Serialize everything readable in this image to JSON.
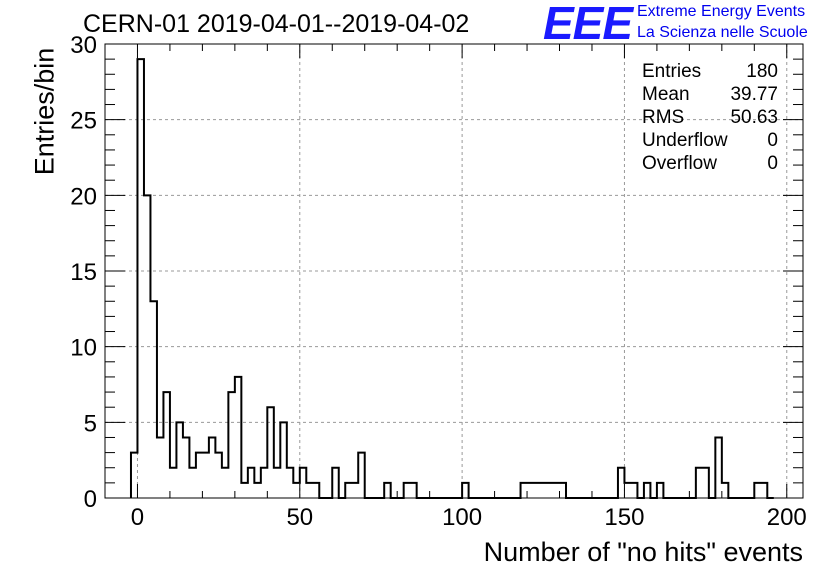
{
  "title": "CERN-01 2019-04-01--2019-04-02",
  "logo": {
    "mark": "EEE",
    "line1": "Extreme Energy Events",
    "line2": "La Scienza nelle Scuole"
  },
  "stats": [
    {
      "label": "Entries",
      "value": "180"
    },
    {
      "label": "Mean",
      "value": "39.77"
    },
    {
      "label": "RMS",
      "value": "50.63"
    },
    {
      "label": "Underflow",
      "value": "0"
    },
    {
      "label": "Overflow",
      "value": "0"
    }
  ],
  "chart_data": {
    "type": "bar",
    "histogram": true,
    "xlabel": "Number of \"no hits\" events",
    "ylabel": "Entries/bin",
    "xlim": [
      -10,
      205
    ],
    "ylim": [
      0,
      30
    ],
    "xticks": [
      0,
      50,
      100,
      150,
      200
    ],
    "yticks": [
      0,
      5,
      10,
      15,
      20,
      25,
      30
    ],
    "grid": true,
    "bin_width": 2,
    "bin_edges_start": [
      -2,
      0,
      2,
      4,
      6,
      8,
      10,
      12,
      14,
      16,
      18,
      20,
      22,
      24,
      26,
      28,
      30,
      32,
      34,
      36,
      38,
      40,
      42,
      44,
      46,
      48,
      50,
      52,
      54,
      56,
      58,
      60,
      62,
      64,
      66,
      68,
      70,
      72,
      74,
      76,
      78,
      80,
      82,
      84,
      86,
      88,
      90,
      92,
      94,
      96,
      98,
      100,
      102,
      104,
      106,
      108,
      110,
      112,
      114,
      116,
      118,
      120,
      122,
      124,
      126,
      128,
      130,
      132,
      134,
      136,
      138,
      140,
      142,
      144,
      146,
      148,
      150,
      152,
      154,
      156,
      158,
      160,
      162,
      164,
      166,
      168,
      170,
      172,
      174,
      176,
      178,
      180,
      182,
      184,
      186,
      188,
      190,
      192,
      194
    ],
    "counts": [
      3,
      29,
      20,
      13,
      4,
      7,
      2,
      5,
      4,
      2,
      3,
      3,
      4,
      3,
      2,
      7,
      8,
      1,
      2,
      1,
      2,
      6,
      2,
      5,
      2,
      1,
      2,
      1,
      1,
      0,
      0,
      2,
      0,
      1,
      1,
      3,
      0,
      0,
      0,
      1,
      0,
      0,
      1,
      1,
      0,
      0,
      0,
      0,
      0,
      0,
      0,
      1,
      0,
      0,
      0,
      0,
      0,
      0,
      0,
      0,
      1,
      1,
      1,
      1,
      1,
      1,
      1,
      0,
      0,
      0,
      0,
      0,
      0,
      0,
      0,
      2,
      1,
      1,
      0,
      1,
      0,
      1,
      0,
      0,
      0,
      0,
      0,
      2,
      2,
      0,
      4,
      1,
      0,
      0,
      0,
      0,
      1,
      1,
      0
    ]
  }
}
